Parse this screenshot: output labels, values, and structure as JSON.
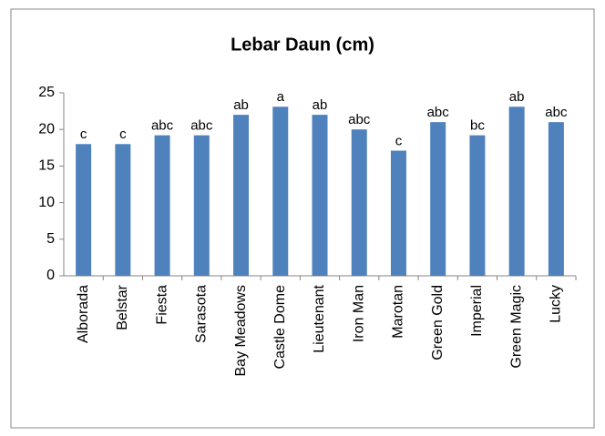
{
  "chart_data": {
    "type": "bar",
    "title": "Lebar Daun (cm)",
    "categories": [
      "Alborada",
      "Belstar",
      "Fiesta",
      "Sarasota",
      "Bay Meadows",
      "Castle Dome",
      "Lieutenant",
      "Iron Man",
      "Marotan",
      "Green Gold",
      "Imperial",
      "Green Magic",
      "Lucky"
    ],
    "values": [
      18,
      18,
      19.2,
      19.2,
      22,
      23.1,
      22,
      20,
      17.1,
      21,
      19.2,
      23.1,
      21
    ],
    "annotations": [
      "c",
      "c",
      "abc",
      "abc",
      "ab",
      "a",
      "ab",
      "abc",
      "c",
      "abc",
      "bc",
      "ab",
      "abc"
    ],
    "color": "#4f81bd",
    "ylim": [
      0,
      25
    ],
    "yticks": [
      0,
      5,
      10,
      15,
      20,
      25
    ],
    "grid": false
  }
}
